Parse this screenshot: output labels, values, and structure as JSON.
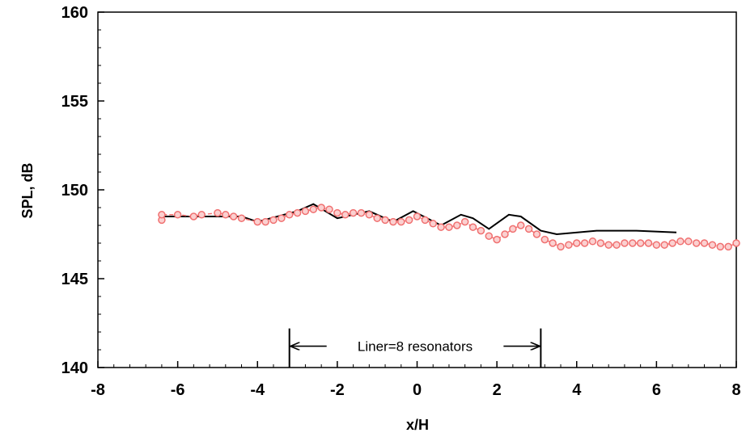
{
  "chart_data": {
    "type": "line",
    "title": "",
    "xlabel": "x/H",
    "ylabel": "SPL, dB",
    "xlim": [
      -8,
      8
    ],
    "ylim": [
      140,
      160
    ],
    "x_ticks": [
      -8,
      -6,
      -4,
      -2,
      0,
      2,
      4,
      6,
      8
    ],
    "y_ticks": [
      140,
      145,
      150,
      155,
      160
    ],
    "grid": false,
    "legend": "none",
    "series": [
      {
        "style": "solid-black-line",
        "color": "#000000",
        "x": [
          -6.4,
          -5.0,
          -4.4,
          -4.0,
          -3.0,
          -2.6,
          -2.0,
          -1.2,
          -0.6,
          -0.1,
          0.6,
          1.1,
          1.4,
          1.8,
          2.3,
          2.6,
          3.1,
          3.5,
          4.5,
          5.5,
          6.5
        ],
        "y": [
          148.5,
          148.5,
          148.5,
          148.2,
          148.8,
          149.2,
          148.4,
          148.8,
          148.2,
          148.8,
          148.0,
          148.6,
          148.4,
          147.8,
          148.6,
          148.5,
          147.7,
          147.5,
          147.7,
          147.7,
          147.6
        ]
      },
      {
        "style": "red-dashed-circles",
        "color": "#f07070",
        "x": [
          -6.4,
          -6.4,
          -6.0,
          -5.6,
          -5.4,
          -5.0,
          -4.8,
          -4.6,
          -4.4,
          -4.0,
          -3.8,
          -3.6,
          -3.4,
          -3.2,
          -3.0,
          -2.8,
          -2.6,
          -2.4,
          -2.2,
          -2.0,
          -1.8,
          -1.6,
          -1.4,
          -1.2,
          -1.0,
          -0.8,
          -0.6,
          -0.4,
          -0.2,
          0.0,
          0.2,
          0.4,
          0.6,
          0.8,
          1.0,
          1.2,
          1.4,
          1.6,
          1.8,
          2.0,
          2.2,
          2.4,
          2.6,
          2.8,
          3.0,
          3.2,
          3.4,
          3.6,
          3.8,
          4.0,
          4.2,
          4.4,
          4.6,
          4.8,
          5.0,
          5.2,
          5.4,
          5.6,
          5.8,
          6.0,
          6.2,
          6.4,
          6.6,
          6.8,
          7.0,
          7.2,
          7.4,
          7.6,
          7.8,
          8.0
        ],
        "y": [
          148.3,
          148.6,
          148.6,
          148.5,
          148.6,
          148.7,
          148.6,
          148.5,
          148.4,
          148.2,
          148.2,
          148.3,
          148.4,
          148.6,
          148.7,
          148.8,
          148.9,
          149.0,
          148.9,
          148.7,
          148.6,
          148.7,
          148.7,
          148.6,
          148.4,
          148.3,
          148.2,
          148.2,
          148.3,
          148.5,
          148.3,
          148.1,
          147.9,
          147.9,
          148.0,
          148.2,
          147.9,
          147.7,
          147.4,
          147.2,
          147.5,
          147.8,
          148.0,
          147.8,
          147.5,
          147.2,
          147.0,
          146.8,
          146.9,
          147.0,
          147.0,
          147.1,
          147.0,
          146.9,
          146.9,
          147.0,
          147.0,
          147.0,
          147.0,
          146.9,
          146.9,
          147.0,
          147.1,
          147.1,
          147.0,
          147.0,
          146.9,
          146.8,
          146.8,
          147.0
        ]
      }
    ],
    "annotation": {
      "text": "Liner=8 resonators",
      "x_start": -3.2,
      "x_end": 3.1,
      "y": 141.2
    }
  }
}
